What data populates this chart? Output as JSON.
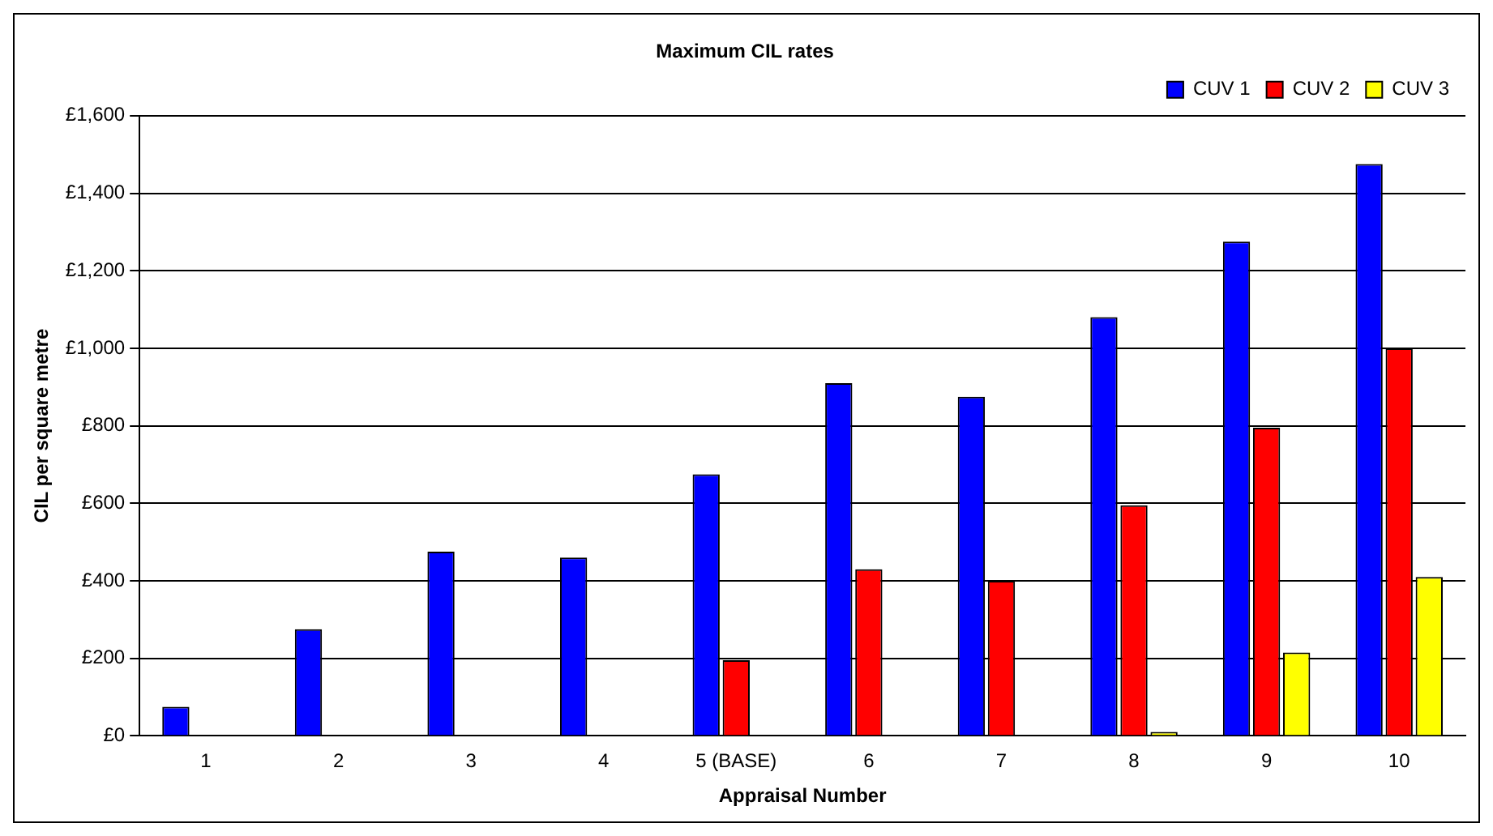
{
  "chart_data": {
    "type": "bar",
    "title": "Maximum CIL rates",
    "xlabel": "Appraisal Number",
    "ylabel": "CIL per square metre",
    "categories": [
      "1",
      "2",
      "3",
      "4",
      "5 (BASE)",
      "6",
      "7",
      "8",
      "9",
      "10"
    ],
    "series": [
      {
        "name": "CUV 1",
        "color": "#0000ff",
        "values": [
          75,
          275,
          475,
          460,
          675,
          910,
          875,
          1080,
          1275,
          1475
        ]
      },
      {
        "name": "CUV 2",
        "color": "#ff0000",
        "values": [
          0,
          0,
          0,
          0,
          195,
          430,
          400,
          595,
          795,
          1000
        ]
      },
      {
        "name": "CUV 3",
        "color": "#ffff00",
        "values": [
          0,
          0,
          0,
          0,
          0,
          0,
          0,
          10,
          215,
          410
        ]
      }
    ],
    "ylim": [
      0,
      1600
    ],
    "yticks": [
      {
        "value": 0,
        "label": "£0"
      },
      {
        "value": 200,
        "label": "£200"
      },
      {
        "value": 400,
        "label": "£400"
      },
      {
        "value": 600,
        "label": "£600"
      },
      {
        "value": 800,
        "label": "£800"
      },
      {
        "value": 1000,
        "label": "£1,000"
      },
      {
        "value": 1200,
        "label": "£1,200"
      },
      {
        "value": 1400,
        "label": "£1,400"
      },
      {
        "value": 1600,
        "label": "£1,600"
      }
    ],
    "grid": "y",
    "legend": "top right"
  }
}
